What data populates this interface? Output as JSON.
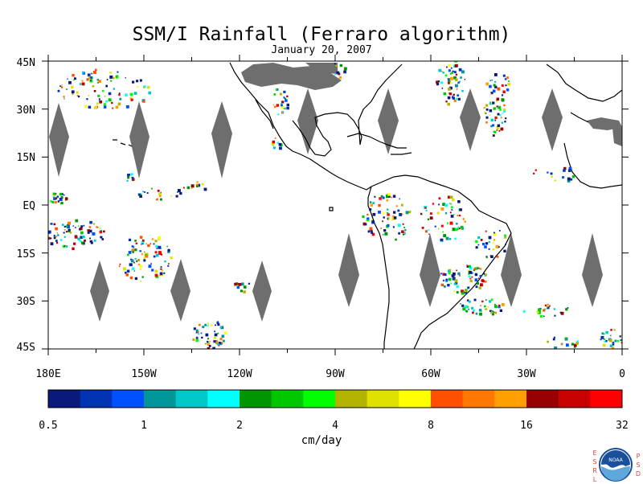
{
  "map": {
    "title": "SSM/I Rainfall (Ferraro algorithm)",
    "date": "January 20, 2007",
    "lat_labels": [
      "45N",
      "30N",
      "15N",
      "EQ",
      "15S",
      "30S",
      "45S"
    ],
    "lon_labels": [
      "180E",
      "150W",
      "120W",
      "90W",
      "60W",
      "30W",
      "0"
    ],
    "no_data_color": "#6e6e6e",
    "coast_color": "#000000"
  },
  "colorbar": {
    "unit_label": "cm/day",
    "tick_labels": [
      "0.5",
      "1",
      "2",
      "4",
      "8",
      "16",
      "32"
    ],
    "colors": [
      "#0a1a7a",
      "#0032b4",
      "#0050ff",
      "#00969a",
      "#00c8c8",
      "#00ffff",
      "#009600",
      "#00c800",
      "#00ff00",
      "#b4b400",
      "#e1e100",
      "#ffff00",
      "#ff5000",
      "#ff7800",
      "#ffa000",
      "#960000",
      "#c80000",
      "#ff0000"
    ]
  },
  "logo": {
    "left_letters": "ESRL",
    "right_letters": "PSD",
    "badge_text": "NOAA"
  }
}
